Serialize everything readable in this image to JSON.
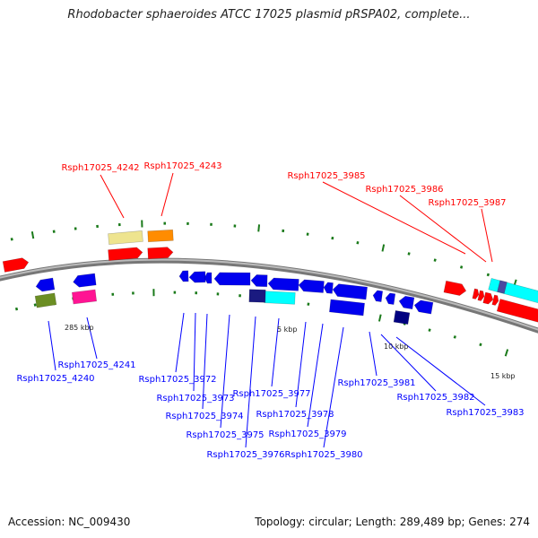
{
  "title": "Rhodobacter sphaeroides ATCC 17025 plasmid pRSPA02, complete...",
  "footer": {
    "accession": "Accession: NC_009430",
    "summary": "Topology: circular; Length: 289,489 bp; Genes: 274"
  },
  "scale_labels": [
    "285 kbp",
    "5 kbp",
    "10 kbp",
    "15 kbp"
  ],
  "red_labels": [
    "Rsph17025_4242",
    "Rsph17025_4243",
    "Rsph17025_3985",
    "Rsph17025_3986",
    "Rsph17025_3987"
  ],
  "blue_labels": [
    "Rsph17025_4240",
    "Rsph17025_4241",
    "Rsph17025_3972",
    "Rsph17025_3973",
    "Rsph17025_3974",
    "Rsph17025_3975",
    "Rsph17025_3976",
    "Rsph17025_3977",
    "Rsph17025_3978",
    "Rsph17025_3979",
    "Rsph17025_3980",
    "Rsph17025_3981",
    "Rsph17025_3982",
    "Rsph17025_3983"
  ],
  "colors": {
    "forward_label": "#ff0000",
    "reverse_label": "#0000ff",
    "tick": "#1a7a1a",
    "backbone": "#888888"
  }
}
